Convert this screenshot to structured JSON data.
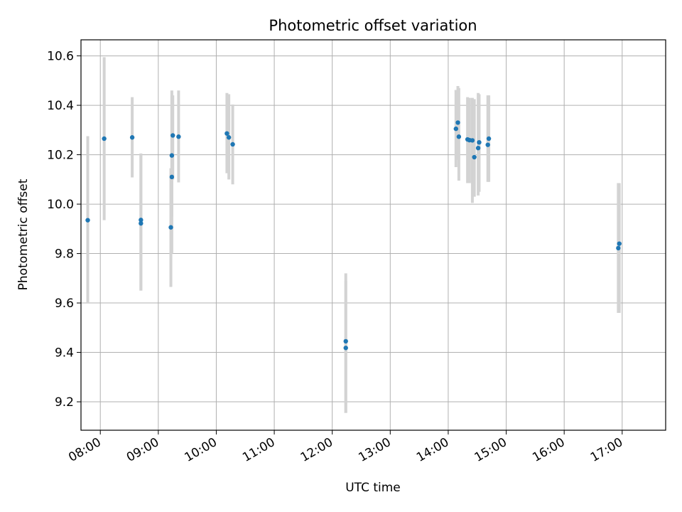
{
  "chart_data": {
    "type": "scatter",
    "title": "Photometric offset variation",
    "xlabel": "UTC time",
    "ylabel": "Photometric offset",
    "x_unit": "UTC time of day (HH:MM)",
    "xlim": [
      "07:40",
      "17:45"
    ],
    "ylim": [
      9.085,
      10.665
    ],
    "xticks": [
      "08:00",
      "09:00",
      "10:00",
      "11:00",
      "12:00",
      "13:00",
      "14:00",
      "15:00",
      "16:00",
      "17:00"
    ],
    "yticks": [
      9.2,
      9.4,
      9.6,
      9.8,
      10.0,
      10.2,
      10.4,
      10.6
    ],
    "grid": true,
    "legend": "none",
    "colors": {
      "points": "#1f77b4",
      "error_bars": "#d3d3d3",
      "grid": "#b0b0b0"
    },
    "points": [
      {
        "t": "07:47",
        "y": 9.935,
        "lo": 9.6,
        "hi": 10.275
      },
      {
        "t": "08:04",
        "y": 10.265,
        "lo": 9.935,
        "hi": 10.595
      },
      {
        "t": "08:33",
        "y": 10.27,
        "lo": 10.108,
        "hi": 10.433
      },
      {
        "t": "08:42",
        "y": 9.936,
        "lo": 9.65,
        "hi": 10.205
      },
      {
        "t": "08:42",
        "y": 9.922,
        "lo": 9.65,
        "hi": 10.205
      },
      {
        "t": "09:13",
        "y": 9.906,
        "lo": 9.665,
        "hi": 10.145
      },
      {
        "t": "09:14",
        "y": 10.11,
        "lo": 9.8,
        "hi": 10.44
      },
      {
        "t": "09:14",
        "y": 10.197,
        "lo": 9.95,
        "hi": 10.46
      },
      {
        "t": "09:15",
        "y": 10.278,
        "lo": 10.1,
        "hi": 10.44
      },
      {
        "t": "09:21",
        "y": 10.273,
        "lo": 10.088,
        "hi": 10.46
      },
      {
        "t": "10:11",
        "y": 10.286,
        "lo": 10.125,
        "hi": 10.45
      },
      {
        "t": "10:13",
        "y": 10.27,
        "lo": 10.1,
        "hi": 10.445
      },
      {
        "t": "10:17",
        "y": 10.242,
        "lo": 10.08,
        "hi": 10.403
      },
      {
        "t": "12:14",
        "y": 9.445,
        "lo": 9.155,
        "hi": 9.72
      },
      {
        "t": "12:14",
        "y": 9.418,
        "lo": 9.155,
        "hi": 9.69
      },
      {
        "t": "14:08",
        "y": 10.305,
        "lo": 10.15,
        "hi": 10.462
      },
      {
        "t": "14:10",
        "y": 10.33,
        "lo": 10.18,
        "hi": 10.478
      },
      {
        "t": "14:11",
        "y": 10.273,
        "lo": 10.095,
        "hi": 10.47
      },
      {
        "t": "14:20",
        "y": 10.262,
        "lo": 10.085,
        "hi": 10.433
      },
      {
        "t": "14:22",
        "y": 10.259,
        "lo": 10.085,
        "hi": 10.43
      },
      {
        "t": "14:25",
        "y": 10.258,
        "lo": 10.005,
        "hi": 10.43
      },
      {
        "t": "14:27",
        "y": 10.19,
        "lo": 10.03,
        "hi": 10.425
      },
      {
        "t": "14:31",
        "y": 10.227,
        "lo": 10.035,
        "hi": 10.45
      },
      {
        "t": "14:32",
        "y": 10.25,
        "lo": 10.05,
        "hi": 10.445
      },
      {
        "t": "14:41",
        "y": 10.24,
        "lo": 10.09,
        "hi": 10.44
      },
      {
        "t": "14:42",
        "y": 10.265,
        "lo": 10.09,
        "hi": 10.44
      },
      {
        "t": "16:56",
        "y": 9.822,
        "lo": 9.56,
        "hi": 10.085
      },
      {
        "t": "16:57",
        "y": 9.84,
        "lo": 9.56,
        "hi": 10.085
      }
    ]
  }
}
